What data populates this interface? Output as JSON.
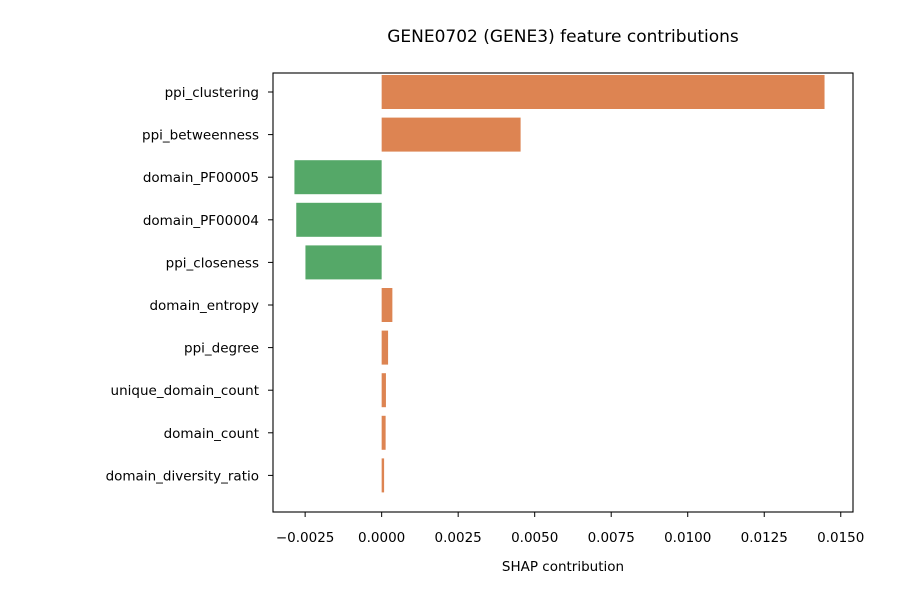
{
  "chart_data": {
    "type": "bar",
    "orientation": "horizontal",
    "title": "GENE0702 (GENE3) feature contributions",
    "xlabel": "SHAP contribution",
    "ylabel": "",
    "xlim": [
      -0.00355,
      0.0154
    ],
    "xticks": [
      -0.0025,
      0.0,
      0.0025,
      0.005,
      0.0075,
      0.01,
      0.0125,
      0.015
    ],
    "xtick_labels": [
      "−0.0025",
      "0.0000",
      "0.0025",
      "0.0050",
      "0.0075",
      "0.0100",
      "0.0125",
      "0.0150"
    ],
    "grid": false,
    "categories": [
      "ppi_clustering",
      "ppi_betweenness",
      "domain_PF00005",
      "domain_PF00004",
      "ppi_closeness",
      "domain_entropy",
      "ppi_degree",
      "unique_domain_count",
      "domain_count",
      "domain_diversity_ratio"
    ],
    "values": [
      0.01447,
      0.00454,
      -0.00285,
      -0.00279,
      -0.00249,
      0.00035,
      0.00021,
      0.00014,
      0.00013,
      8e-05
    ],
    "colors": {
      "positive": "#dd8452",
      "negative": "#55a868"
    }
  }
}
